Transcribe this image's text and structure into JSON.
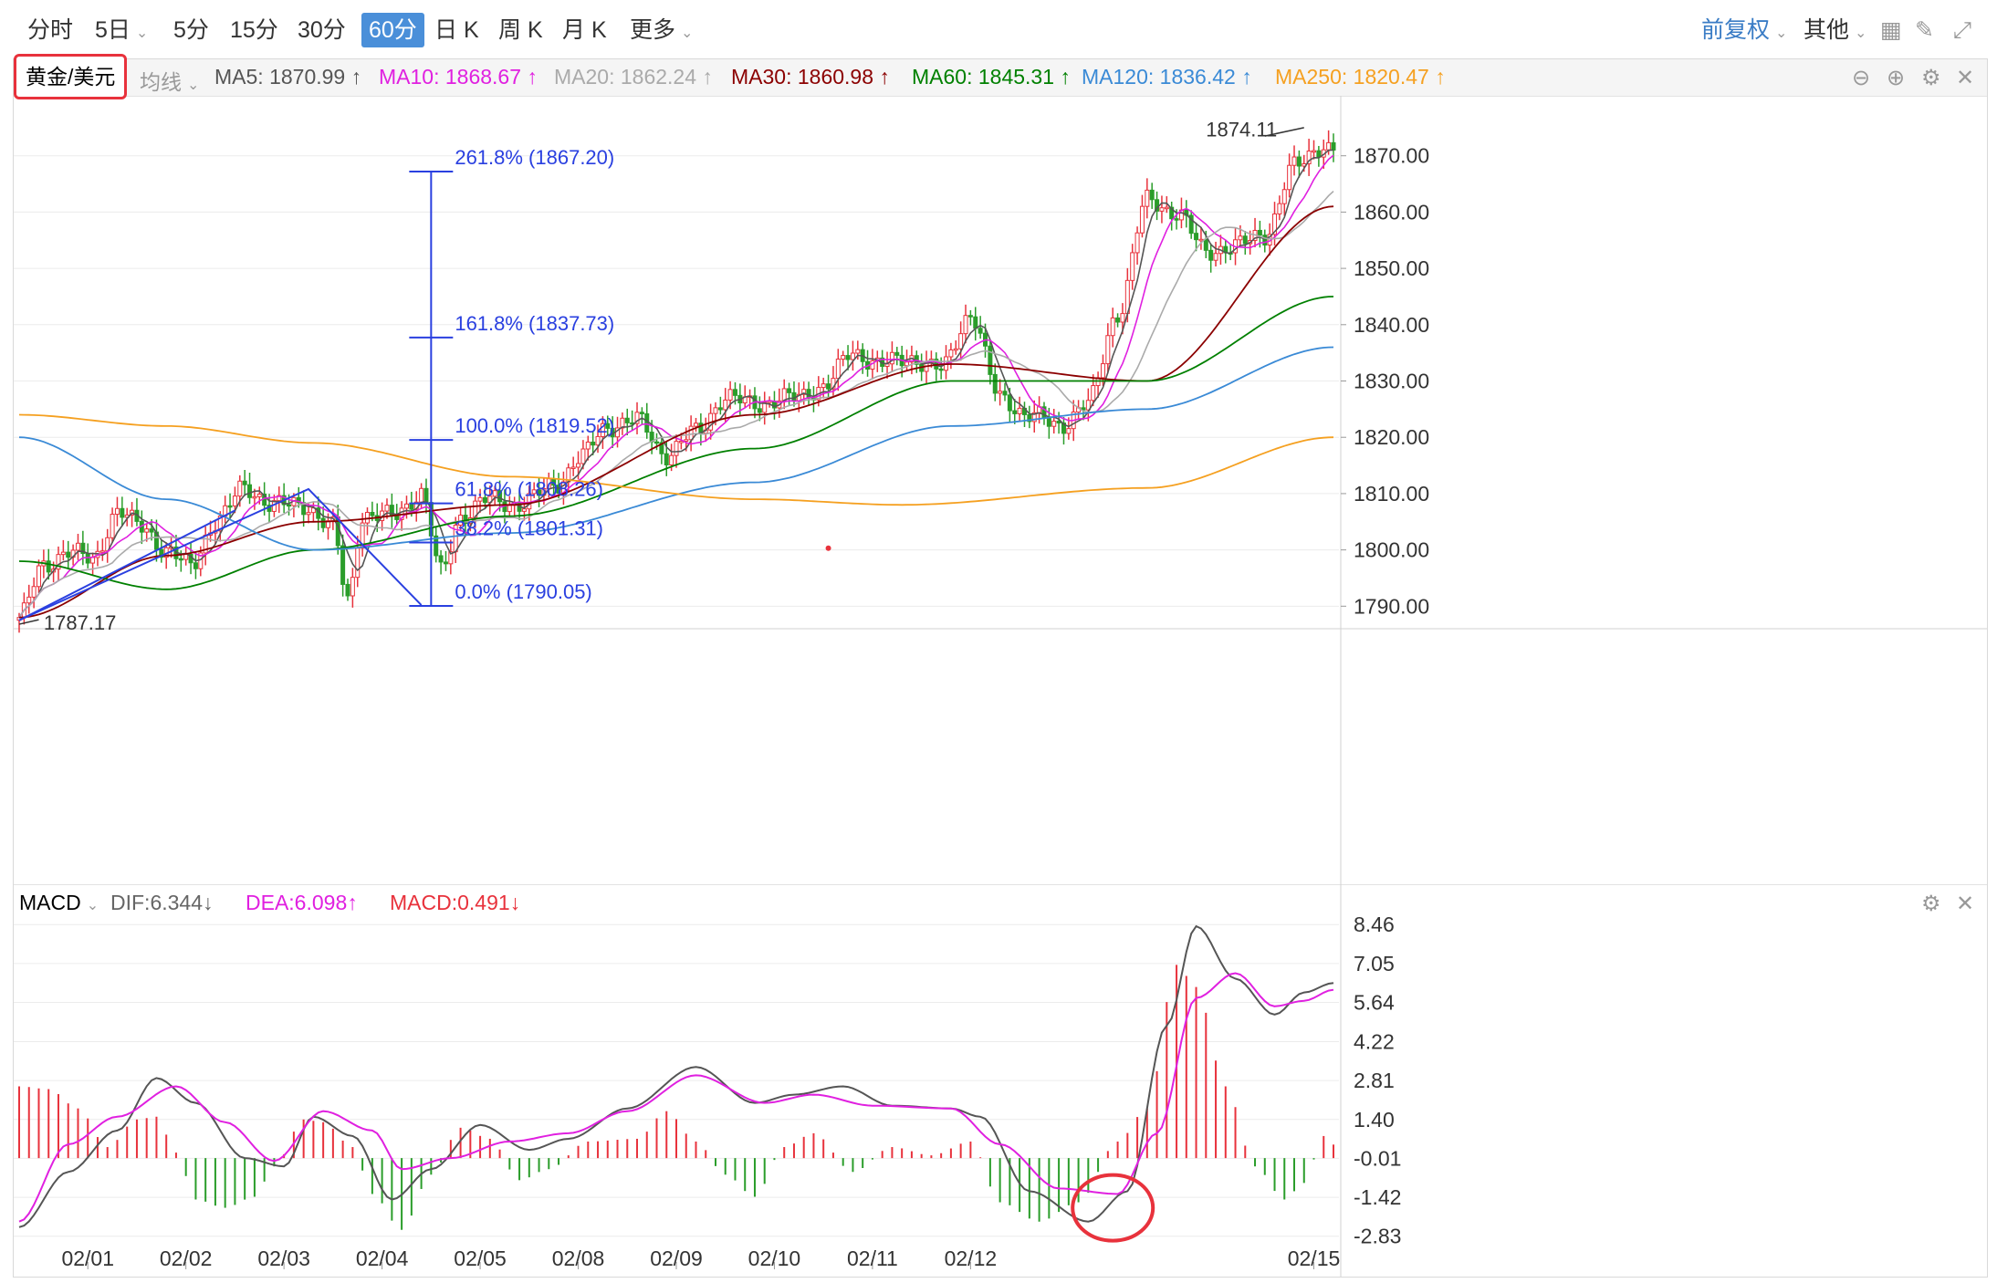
{
  "toolbar": {
    "tabs": [
      "分时",
      "5日",
      "5分",
      "15分",
      "30分",
      "60分",
      "日 K",
      "周 K",
      "月 K",
      "更多"
    ],
    "active_tab": "60分",
    "adjust": "前复权",
    "other": "其他"
  },
  "symbol": "黄金/美元",
  "indicator_menu": "均线",
  "ma_legend": [
    {
      "label": "MA5: 1870.99",
      "arrow": "↑",
      "color": "#555555"
    },
    {
      "label": "MA10: 1868.67",
      "arrow": "↑",
      "color": "#e020e0"
    },
    {
      "label": "MA20: 1862.24",
      "arrow": "↑",
      "color": "#aaaaaa"
    },
    {
      "label": "MA30: 1860.98",
      "arrow": "↑",
      "color": "#8b0000"
    },
    {
      "label": "MA60: 1845.31",
      "arrow": "↑",
      "color": "#008000"
    },
    {
      "label": "MA120: 1836.42",
      "arrow": "↑",
      "color": "#3a8ad6"
    },
    {
      "label": "MA250: 1820.47",
      "arrow": "↑",
      "color": "#f5a020"
    }
  ],
  "macd_legend": {
    "name": "MACD",
    "dif": "DIF:6.344",
    "dif_arrow": "↓",
    "dea": "DEA:6.098",
    "dea_arrow": "↑",
    "macd": "MACD:0.491",
    "macd_arrow": "↓"
  },
  "chart_data": {
    "type": "line",
    "price_axis": {
      "ticks": [
        "1870.00",
        "1860.00",
        "1850.00",
        "1840.00",
        "1830.00",
        "1820.00",
        "1810.00",
        "1800.00",
        "1790.00"
      ],
      "ylim": [
        1786,
        1880
      ]
    },
    "macd_axis": {
      "ticks": [
        "8.46",
        "7.05",
        "5.64",
        "4.22",
        "2.81",
        "1.40",
        "-0.01",
        "-1.42",
        "-2.83"
      ],
      "ylim": [
        -3.5,
        8.6
      ]
    },
    "x_labels": [
      "02/01",
      "02/02",
      "02/03",
      "02/04",
      "02/05",
      "02/08",
      "02/09",
      "02/10",
      "02/11",
      "02/12",
      "02/15"
    ],
    "high_label": "1874.11",
    "low_label": "1787.17",
    "fibonacci": [
      {
        "label": "261.8% (1867.20)",
        "value": 1867.2
      },
      {
        "label": "161.8% (1837.73)",
        "value": 1837.73
      },
      {
        "label": "100.0% (1819.52)",
        "value": 1819.52
      },
      {
        "label": "61.8% (1808.26)",
        "value": 1808.26
      },
      {
        "label": "38.2% (1801.31)",
        "value": 1801.31
      },
      {
        "label": "0.0% (1790.05)",
        "value": 1790.05
      }
    ],
    "close_anchors": [
      [
        0,
        1788
      ],
      [
        5,
        1797
      ],
      [
        10,
        1800
      ],
      [
        15,
        1798
      ],
      [
        20,
        1807
      ],
      [
        25,
        1804
      ],
      [
        30,
        1800
      ],
      [
        35,
        1797
      ],
      [
        40,
        1805
      ],
      [
        46,
        1811
      ],
      [
        52,
        1808
      ],
      [
        58,
        1808
      ],
      [
        64,
        1804
      ],
      [
        67,
        1791
      ],
      [
        70,
        1806
      ],
      [
        76,
        1806
      ],
      [
        82,
        1810
      ],
      [
        86,
        1796
      ],
      [
        90,
        1806
      ],
      [
        96,
        1809
      ],
      [
        102,
        1808
      ],
      [
        110,
        1812
      ],
      [
        114,
        1816
      ],
      [
        120,
        1822
      ],
      [
        126,
        1823
      ],
      [
        132,
        1817
      ],
      [
        138,
        1821
      ],
      [
        144,
        1827
      ],
      [
        150,
        1826
      ],
      [
        158,
        1827
      ],
      [
        164,
        1829
      ],
      [
        170,
        1835
      ],
      [
        176,
        1833
      ],
      [
        182,
        1834
      ],
      [
        188,
        1832
      ],
      [
        194,
        1842
      ],
      [
        200,
        1827
      ],
      [
        206,
        1824
      ],
      [
        212,
        1822
      ],
      [
        218,
        1826
      ],
      [
        224,
        1842
      ],
      [
        230,
        1862
      ],
      [
        236,
        1860
      ],
      [
        242,
        1853
      ],
      [
        248,
        1854
      ],
      [
        254,
        1856
      ],
      [
        260,
        1868
      ],
      [
        266,
        1872
      ],
      [
        268,
        1871
      ]
    ],
    "ma_series": [
      {
        "name": "MA30",
        "color": "#8b0000",
        "points": [
          [
            0,
            1788
          ],
          [
            30,
            1799
          ],
          [
            60,
            1805
          ],
          [
            100,
            1808
          ],
          [
            150,
            1824
          ],
          [
            190,
            1833
          ],
          [
            230,
            1830
          ],
          [
            268,
            1861
          ]
        ]
      },
      {
        "name": "MA60",
        "color": "#008000",
        "points": [
          [
            0,
            1798
          ],
          [
            30,
            1793
          ],
          [
            60,
            1800
          ],
          [
            100,
            1806
          ],
          [
            150,
            1818
          ],
          [
            190,
            1830
          ],
          [
            230,
            1830
          ],
          [
            268,
            1845
          ]
        ]
      },
      {
        "name": "MA120",
        "color": "#3a8ad6",
        "points": [
          [
            0,
            1820
          ],
          [
            30,
            1809
          ],
          [
            60,
            1800
          ],
          [
            100,
            1803
          ],
          [
            150,
            1812
          ],
          [
            190,
            1822
          ],
          [
            230,
            1825
          ],
          [
            268,
            1836
          ]
        ]
      },
      {
        "name": "MA250",
        "color": "#f5a020",
        "points": [
          [
            0,
            1824
          ],
          [
            30,
            1822
          ],
          [
            60,
            1819
          ],
          [
            100,
            1813
          ],
          [
            150,
            1809
          ],
          [
            180,
            1808
          ],
          [
            230,
            1811
          ],
          [
            268,
            1820
          ]
        ]
      }
    ],
    "macd_series": {
      "dif": [
        [
          0,
          -2.5
        ],
        [
          10,
          -0.5
        ],
        [
          20,
          1.0
        ],
        [
          28,
          2.9
        ],
        [
          36,
          2.0
        ],
        [
          46,
          0.0
        ],
        [
          54,
          -0.3
        ],
        [
          60,
          1.5
        ],
        [
          68,
          0.8
        ],
        [
          76,
          -1.5
        ],
        [
          84,
          -0.4
        ],
        [
          94,
          1.2
        ],
        [
          104,
          0.3
        ],
        [
          112,
          0.7
        ],
        [
          124,
          1.8
        ],
        [
          138,
          3.3
        ],
        [
          150,
          2.0
        ],
        [
          158,
          2.3
        ],
        [
          168,
          2.6
        ],
        [
          178,
          1.9
        ],
        [
          190,
          1.8
        ],
        [
          196,
          1.5
        ],
        [
          206,
          -1.2
        ],
        [
          218,
          -2.3
        ],
        [
          226,
          -1.2
        ],
        [
          234,
          4.8
        ],
        [
          240,
          8.4
        ],
        [
          248,
          6.5
        ],
        [
          256,
          5.2
        ],
        [
          262,
          6.0
        ],
        [
          268,
          6.344
        ]
      ],
      "dea": [
        [
          0,
          -2.3
        ],
        [
          10,
          0.5
        ],
        [
          20,
          1.5
        ],
        [
          32,
          2.6
        ],
        [
          42,
          1.3
        ],
        [
          52,
          -0.1
        ],
        [
          62,
          1.7
        ],
        [
          72,
          1.0
        ],
        [
          78,
          -0.4
        ],
        [
          88,
          0.0
        ],
        [
          100,
          0.6
        ],
        [
          112,
          0.9
        ],
        [
          124,
          1.7
        ],
        [
          138,
          3.0
        ],
        [
          152,
          2.0
        ],
        [
          162,
          2.3
        ],
        [
          174,
          1.9
        ],
        [
          190,
          1.8
        ],
        [
          200,
          0.5
        ],
        [
          212,
          -1.1
        ],
        [
          224,
          -1.3
        ],
        [
          232,
          0.9
        ],
        [
          240,
          5.8
        ],
        [
          248,
          6.7
        ],
        [
          256,
          5.5
        ],
        [
          262,
          5.7
        ],
        [
          268,
          6.098
        ]
      ],
      "hist": [
        [
          0,
          2.6
        ],
        [
          6,
          2.5
        ],
        [
          12,
          1.8
        ],
        [
          18,
          0.4
        ],
        [
          24,
          1.4
        ],
        [
          28,
          1.5
        ],
        [
          32,
          0.2
        ],
        [
          36,
          -1.5
        ],
        [
          42,
          -1.8
        ],
        [
          48,
          -1.4
        ],
        [
          52,
          -0.3
        ],
        [
          58,
          1.4
        ],
        [
          62,
          1.3
        ],
        [
          68,
          0.4
        ],
        [
          72,
          -1.3
        ],
        [
          78,
          -2.6
        ],
        [
          84,
          -0.6
        ],
        [
          90,
          1.1
        ],
        [
          96,
          0.7
        ],
        [
          102,
          -0.8
        ],
        [
          108,
          -0.4
        ],
        [
          116,
          0.6
        ],
        [
          126,
          0.7
        ],
        [
          132,
          1.7
        ],
        [
          138,
          0.6
        ],
        [
          144,
          -0.6
        ],
        [
          150,
          -1.4
        ],
        [
          156,
          0.4
        ],
        [
          162,
          0.9
        ],
        [
          170,
          -0.5
        ],
        [
          178,
          0.4
        ],
        [
          186,
          0.1
        ],
        [
          194,
          0.6
        ],
        [
          200,
          -1.6
        ],
        [
          208,
          -2.3
        ],
        [
          216,
          -1.6
        ],
        [
          224,
          0.6
        ],
        [
          230,
          1.8
        ],
        [
          236,
          7.0
        ],
        [
          240,
          6.2
        ],
        [
          246,
          2.6
        ],
        [
          252,
          -0.3
        ],
        [
          258,
          -1.5
        ],
        [
          262,
          -0.9
        ],
        [
          266,
          0.8
        ],
        [
          268,
          0.49
        ]
      ]
    }
  }
}
